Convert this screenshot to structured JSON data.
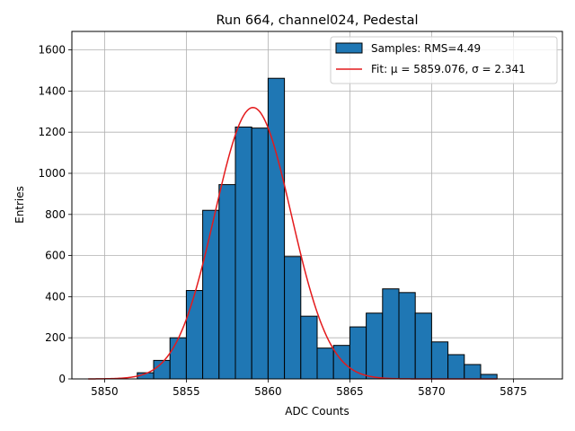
{
  "chart_data": {
    "type": "bar",
    "title": "Run 664, channel024, Pedestal",
    "xlabel": "ADC Counts",
    "ylabel": "Entries",
    "xlim": [
      5848,
      5878
    ],
    "ylim": [
      0,
      1690
    ],
    "xticks": [
      5850,
      5855,
      5860,
      5865,
      5870,
      5875
    ],
    "yticks": [
      0,
      200,
      400,
      600,
      800,
      1000,
      1200,
      1400,
      1600
    ],
    "grid": true,
    "legend_position": "top-right",
    "bin_width": 1,
    "histogram": {
      "name": "Samples: RMS=4.49",
      "color": "#1f77b4",
      "bins": [
        {
          "x": 5852,
          "count": 30
        },
        {
          "x": 5853,
          "count": 90
        },
        {
          "x": 5854,
          "count": 200
        },
        {
          "x": 5855,
          "count": 430
        },
        {
          "x": 5856,
          "count": 820
        },
        {
          "x": 5857,
          "count": 945
        },
        {
          "x": 5858,
          "count": 1225
        },
        {
          "x": 5859,
          "count": 1220
        },
        {
          "x": 5860,
          "count": 1462
        },
        {
          "x": 5861,
          "count": 595
        },
        {
          "x": 5862,
          "count": 305
        },
        {
          "x": 5863,
          "count": 150
        },
        {
          "x": 5864,
          "count": 163
        },
        {
          "x": 5865,
          "count": 253
        },
        {
          "x": 5866,
          "count": 320
        },
        {
          "x": 5867,
          "count": 438
        },
        {
          "x": 5868,
          "count": 420
        },
        {
          "x": 5869,
          "count": 320
        },
        {
          "x": 5870,
          "count": 180
        },
        {
          "x": 5871,
          "count": 118
        },
        {
          "x": 5872,
          "count": 70
        },
        {
          "x": 5873,
          "count": 22
        }
      ]
    },
    "fit": {
      "name": "Fit: μ = 5859.076, σ = 2.341",
      "color": "#e41a1c",
      "mu": 5859.076,
      "sigma": 2.341,
      "amplitude": 1320,
      "x_range": [
        5849,
        5874
      ]
    }
  }
}
